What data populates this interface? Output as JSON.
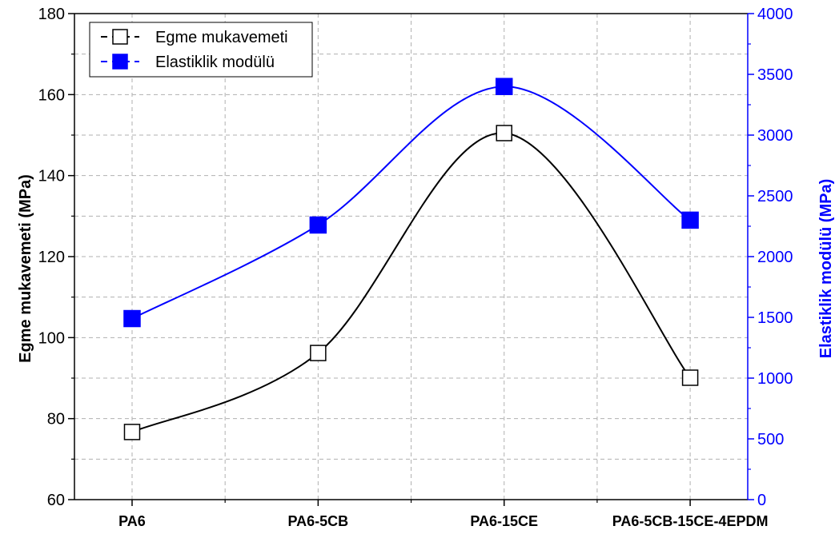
{
  "chart_data": {
    "type": "line",
    "categories": [
      "PA6",
      "PA6-5CB",
      "PA6-15CE",
      "PA6-5CB-15CE-4EPDM"
    ],
    "ylabel": "Egme mukavemeti (MPa)",
    "y2label": "Elastiklik modülü (MPa)",
    "ylim": [
      60,
      180
    ],
    "y2lim": [
      0,
      4000
    ],
    "yticks": [
      "60",
      "80",
      "100",
      "120",
      "140",
      "160",
      "180"
    ],
    "y2ticks": [
      "0",
      "500",
      "1000",
      "1500",
      "2000",
      "2500",
      "3000",
      "3500",
      "4000"
    ],
    "grid": true,
    "legend_position": "top-left",
    "series": [
      {
        "name": "Egme mukavemeti",
        "axis": "left",
        "values": [
          76.7,
          96.2,
          150.5,
          90.1
        ],
        "color": "#000000",
        "marker": "open-square"
      },
      {
        "name": "Elastiklik modülü",
        "axis": "right",
        "values": [
          1490,
          2260,
          3400,
          2300
        ],
        "color": "#0000ff",
        "marker": "filled-square"
      }
    ]
  }
}
